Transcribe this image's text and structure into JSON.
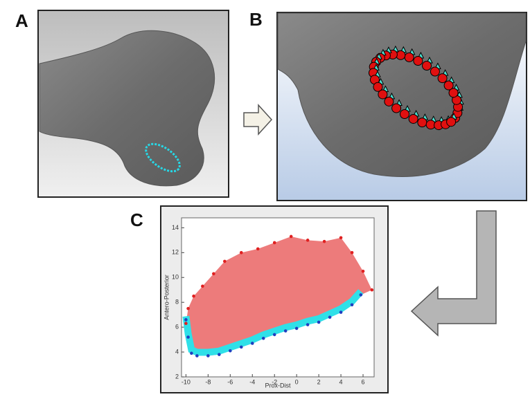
{
  "panels": {
    "a": {
      "label": "A"
    },
    "b": {
      "label": "B"
    },
    "c": {
      "label": "C"
    }
  },
  "chart_data": {
    "type": "scatter",
    "xlabel": "Prox-Dist",
    "ylabel": "Antero-Posterior",
    "xlim": [
      -10.4,
      7
    ],
    "ylim": [
      2,
      14.8
    ],
    "xticks": [
      -10,
      -8,
      -6,
      -4,
      -2,
      0,
      2,
      4,
      6
    ],
    "yticks": [
      2,
      4,
      6,
      8,
      10,
      12,
      14
    ],
    "series": [
      {
        "color": "#e02020",
        "x": [
          -10,
          -9.8,
          -9.3,
          -8.5,
          -7.5,
          -6.5,
          -5,
          -3.5,
          -2,
          -0.5,
          1,
          2.5,
          4,
          5,
          6,
          6.8
        ],
        "y": [
          6.3,
          7.5,
          8.5,
          9.3,
          10.3,
          11.3,
          12,
          12.3,
          12.8,
          13.3,
          13,
          12.9,
          13.2,
          12,
          10.5,
          9
        ]
      },
      {
        "color": "#1f3fc0",
        "x": [
          -10,
          -9.8,
          -9.5,
          -9,
          -8,
          -7,
          -6,
          -5,
          -4,
          -3,
          -2,
          -1,
          0,
          1,
          2,
          3,
          4,
          5,
          5.8
        ],
        "y": [
          6.6,
          5.2,
          3.9,
          3.7,
          3.7,
          3.8,
          4.1,
          4.4,
          4.7,
          5.1,
          5.4,
          5.7,
          5.9,
          6.2,
          6.4,
          6.8,
          7.2,
          7.8,
          8.6
        ]
      }
    ]
  }
}
